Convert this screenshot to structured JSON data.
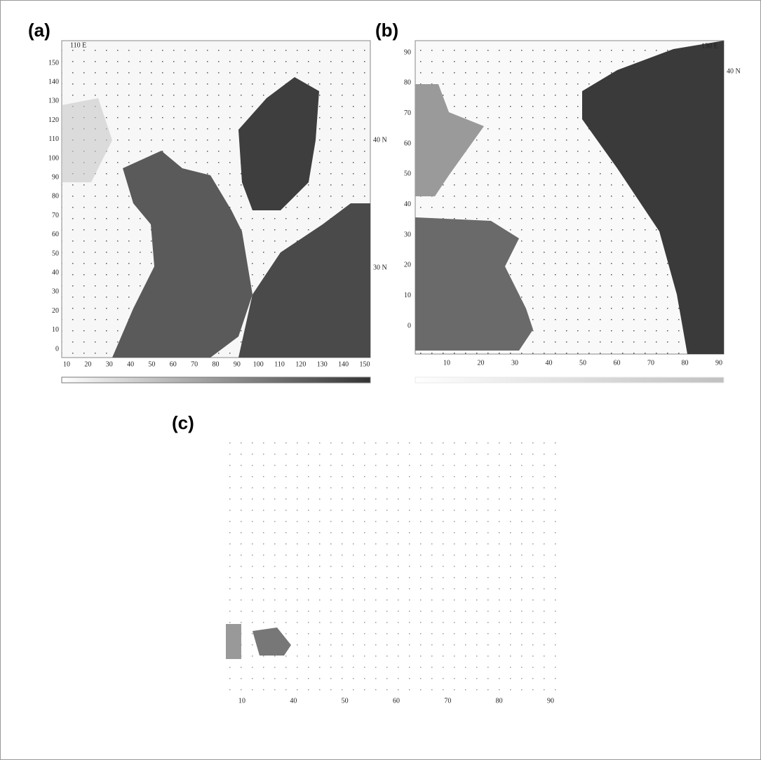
{
  "panels": [
    {
      "label": "(a)",
      "top_labels": [
        "110 E"
      ],
      "side_labels": [
        "40 N",
        "30 N"
      ],
      "y_ticks": [
        150,
        140,
        130,
        120,
        110,
        100,
        90,
        80,
        70,
        60,
        50,
        40,
        30,
        20,
        10,
        0
      ],
      "x_ticks": [
        10,
        20,
        30,
        40,
        50,
        60,
        70,
        80,
        90,
        100,
        110,
        120,
        130,
        140,
        150
      ]
    },
    {
      "label": "(b)",
      "top_labels": [
        "130 E"
      ],
      "side_labels": [
        "40 N"
      ],
      "y_ticks": [
        90,
        80,
        70,
        60,
        50,
        40,
        30,
        20,
        10,
        0
      ],
      "x_ticks": [
        10,
        20,
        30,
        40,
        50,
        60,
        70,
        80,
        90
      ]
    },
    {
      "label": "(c)",
      "top_labels": [],
      "side_labels": [],
      "y_ticks": [],
      "x_ticks": [
        10,
        40,
        50,
        60,
        70,
        80,
        90
      ]
    }
  ]
}
